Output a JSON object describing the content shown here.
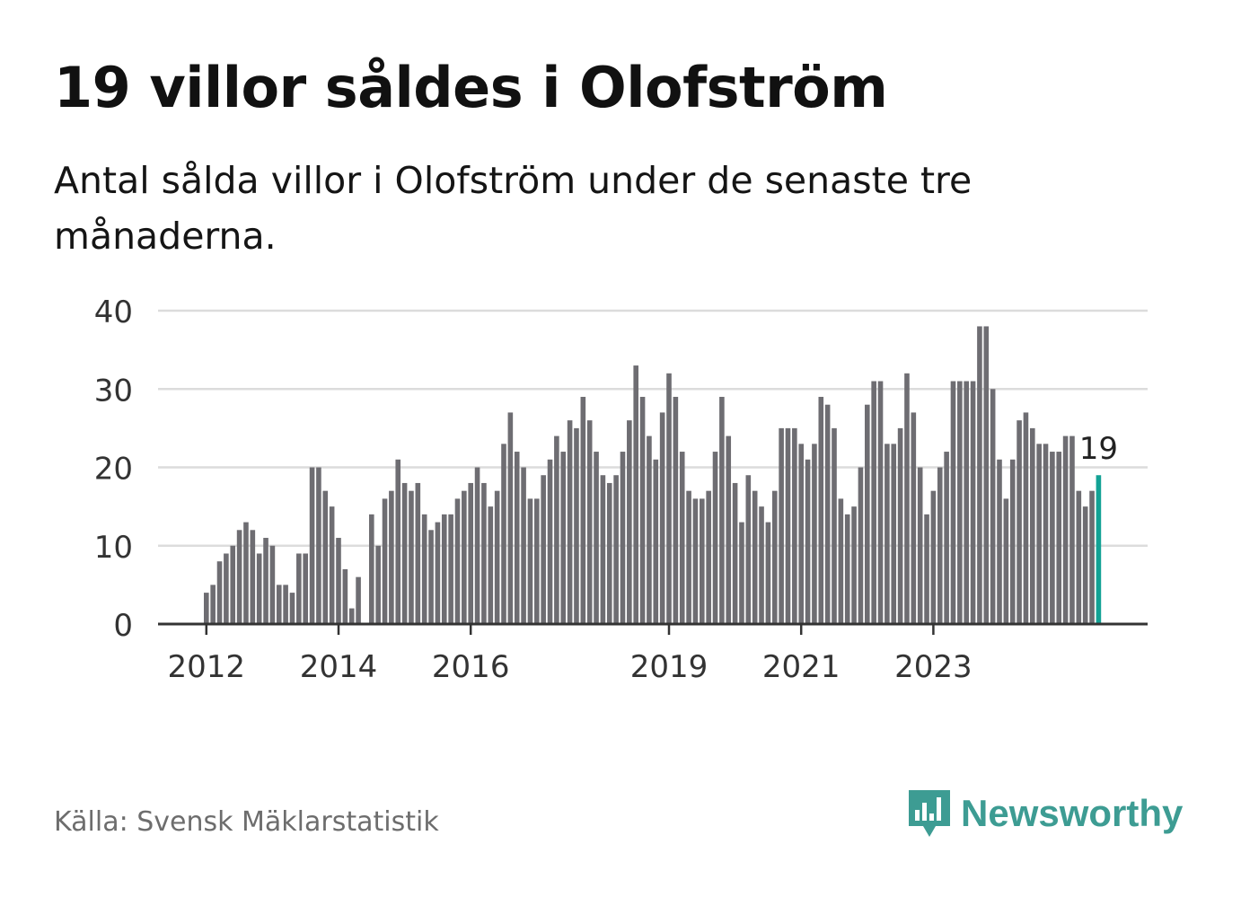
{
  "title": "19 villor såldes i Olofström",
  "subtitle": "Antal sålda villor i Olofström under de senaste tre månaderna.",
  "source": "Källa: Svensk Mäklarstatistik",
  "brand": {
    "name": "Newsworthy",
    "logo_icon": "newsworthy-bar-chart-icon"
  },
  "colors": {
    "bar": "#6e6d72",
    "highlight": "#13a295",
    "grid": "#dcdcdc",
    "axis": "#333333",
    "brand": "#3d9c93"
  },
  "chart_data": {
    "type": "bar",
    "title": "19 villor såldes i Olofström",
    "subtitle": "Antal sålda villor i Olofström under de senaste tre månaderna.",
    "ylim": [
      0,
      40
    ],
    "yticks": [
      "0",
      "10",
      "20",
      "30",
      "40"
    ],
    "xticks": [
      {
        "label": "2012",
        "index": 0
      },
      {
        "label": "2014",
        "index": 20
      },
      {
        "label": "2016",
        "index": 40
      },
      {
        "label": "2019",
        "index": 70
      },
      {
        "label": "2021",
        "index": 90
      },
      {
        "label": "2023",
        "index": 110
      }
    ],
    "grid": true,
    "values": [
      4,
      5,
      8,
      9,
      10,
      12,
      13,
      12,
      9,
      11,
      10,
      5,
      5,
      4,
      9,
      9,
      20,
      20,
      17,
      15,
      11,
      7,
      2,
      6,
      0,
      14,
      10,
      16,
      17,
      21,
      18,
      17,
      18,
      14,
      12,
      13,
      14,
      14,
      16,
      17,
      18,
      20,
      18,
      15,
      17,
      23,
      27,
      22,
      20,
      16,
      16,
      19,
      21,
      24,
      22,
      26,
      25,
      29,
      26,
      22,
      19,
      18,
      19,
      22,
      26,
      33,
      29,
      24,
      21,
      27,
      32,
      29,
      22,
      17,
      16,
      16,
      17,
      22,
      29,
      24,
      18,
      13,
      19,
      17,
      15,
      13,
      17,
      25,
      25,
      25,
      23,
      21,
      23,
      29,
      28,
      25,
      16,
      14,
      15,
      20,
      28,
      31,
      31,
      23,
      23,
      25,
      32,
      27,
      20,
      14,
      17,
      20,
      22,
      31,
      31,
      31,
      31,
      38,
      38,
      30,
      21,
      16,
      21,
      26,
      27,
      25,
      23,
      23,
      22,
      22,
      24,
      24,
      17,
      15,
      17,
      19
    ],
    "highlight": {
      "value": 19,
      "label": "19"
    }
  }
}
